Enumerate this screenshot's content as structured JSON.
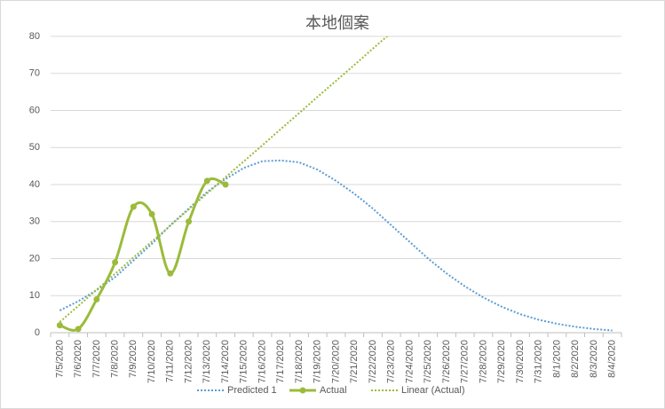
{
  "chart_data": {
    "type": "line",
    "title": "本地個案",
    "categories": [
      "7/5/2020",
      "7/6/2020",
      "7/7/2020",
      "7/8/2020",
      "7/9/2020",
      "7/10/2020",
      "7/11/2020",
      "7/12/2020",
      "7/13/2020",
      "7/14/2020",
      "7/15/2020",
      "7/16/2020",
      "7/17/2020",
      "7/18/2020",
      "7/19/2020",
      "7/20/2020",
      "7/21/2020",
      "7/22/2020",
      "7/23/2020",
      "7/24/2020",
      "7/25/2020",
      "7/26/2020",
      "7/27/2020",
      "7/28/2020",
      "7/29/2020",
      "7/30/2020",
      "7/31/2020",
      "8/1/2020",
      "8/2/2020",
      "8/3/2020",
      "8/4/2020"
    ],
    "series": [
      {
        "name": "Predicted 1",
        "color": "#5b9bd5",
        "line_style": "dotted",
        "markers": false,
        "values": [
          6,
          8.5,
          11.5,
          15,
          19.5,
          24,
          29,
          33.5,
          38,
          41.5,
          44.5,
          46.3,
          46.5,
          46,
          44,
          41,
          37.5,
          33.5,
          29,
          24.5,
          20,
          16,
          12.5,
          9.5,
          7,
          5,
          3.5,
          2.4,
          1.6,
          1,
          0.6
        ]
      },
      {
        "name": "Actual",
        "color": "#9bbb3b",
        "line_style": "solid",
        "markers": true,
        "values": [
          2,
          1,
          9,
          19,
          34,
          32,
          16,
          30,
          41,
          40,
          null,
          null,
          null,
          null,
          null,
          null,
          null,
          null,
          null,
          null,
          null,
          null,
          null,
          null,
          null,
          null,
          null,
          null,
          null,
          null,
          null
        ]
      },
      {
        "name": "Linear (Actual)",
        "color": "#9bbb3b",
        "line_style": "dotted",
        "markers": false,
        "values": [
          2.9,
          7.2,
          11.6,
          15.9,
          20.3,
          24.6,
          28.9,
          33.3,
          37.6,
          42.0,
          46.3,
          50.6,
          55.0,
          59.3,
          63.7,
          68.0,
          72.3,
          76.7,
          81.0,
          null,
          null,
          null,
          null,
          null,
          null,
          null,
          null,
          null,
          null,
          null,
          null
        ]
      }
    ],
    "ylim": [
      0,
      80
    ],
    "yticks": [
      0,
      10,
      20,
      30,
      40,
      50,
      60,
      70,
      80
    ],
    "grid": true,
    "legend": "bottom"
  }
}
